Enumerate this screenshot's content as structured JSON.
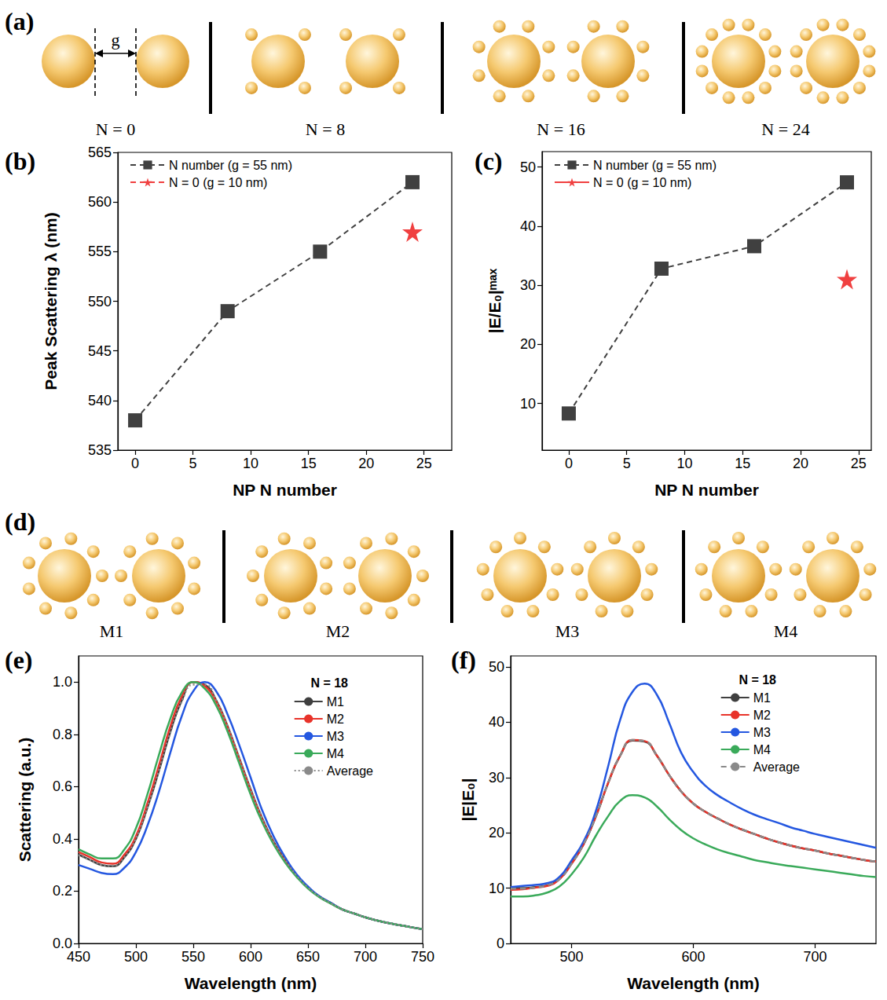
{
  "schematic_a": {
    "panel_label": "(a)",
    "gap_label": "g",
    "configs": [
      {
        "label": "N = 0",
        "N": 0
      },
      {
        "label": "N = 8",
        "N": 8
      },
      {
        "label": "N = 16",
        "N": 16
      },
      {
        "label": "N = 24",
        "N": 24
      }
    ]
  },
  "schematic_d": {
    "panel_label": "(d)",
    "N": 18,
    "configs": [
      {
        "label": "M1"
      },
      {
        "label": "M2"
      },
      {
        "label": "M3"
      },
      {
        "label": "M4"
      }
    ]
  },
  "chart_data": [
    {
      "type": "line",
      "panel_label": "(b)",
      "xlabel": "NP N number",
      "ylabel": "Peak Scattering λ (nm)",
      "xlim": [
        -1.5,
        27.4
      ],
      "xticks": [
        0,
        5,
        10,
        15,
        20,
        25
      ],
      "ylim": [
        535,
        565
      ],
      "yticks": [
        535,
        540,
        545,
        550,
        555,
        560,
        565
      ],
      "grid": false,
      "legend": "upper left",
      "series": [
        {
          "name": "N number (g = 55 nm)",
          "color": "#404040",
          "marker": "square",
          "line_style": "dashed",
          "x": [
            0,
            8,
            16,
            24
          ],
          "values": [
            538,
            549,
            555,
            562
          ]
        },
        {
          "name": "N = 0 (g = 10 nm)",
          "color": "#f04040",
          "marker": "star",
          "line_style": "dashed",
          "x": [
            24
          ],
          "values": [
            557
          ]
        }
      ]
    },
    {
      "type": "line",
      "panel_label": "(c)",
      "xlabel": "NP N number",
      "ylabel": "|E/E₀|ᵐᵃˣ",
      "xlim": [
        -2.3,
        26.1
      ],
      "xticks": [
        0,
        5,
        10,
        15,
        20,
        25
      ],
      "ylim": [
        2.1,
        52.6
      ],
      "yticks": [
        10,
        20,
        30,
        40,
        50
      ],
      "grid": false,
      "legend": "upper left",
      "series": [
        {
          "name": "N number (g = 55 nm)",
          "color": "#404040",
          "marker": "square",
          "line_style": "dashed",
          "x": [
            0,
            8,
            16,
            24
          ],
          "values": [
            8.3,
            32.8,
            36.6,
            47.4
          ]
        },
        {
          "name": "N = 0 (g = 10 nm)",
          "color": "#f04040",
          "marker": "star",
          "line_style": "solid",
          "x": [
            24
          ],
          "values": [
            31
          ]
        }
      ]
    },
    {
      "type": "line",
      "panel_label": "(e)",
      "xlabel": "Wavelength (nm)",
      "ylabel": "Scattering (a.u.)",
      "legend_title": "N = 18",
      "xlim": [
        450,
        750
      ],
      "xticks": [
        450,
        500,
        550,
        600,
        650,
        700,
        750
      ],
      "ylim": [
        0,
        1.1
      ],
      "yticks": [
        {
          "value": 0,
          "label": "0.0"
        },
        0.2,
        0.4,
        0.6,
        0.8,
        {
          "value": 1,
          "label": "1.0"
        }
      ],
      "grid": false,
      "legend": "upper right",
      "x": [
        450,
        460,
        470,
        480,
        490,
        500,
        510,
        520,
        530,
        540,
        550,
        560,
        570,
        580,
        590,
        600,
        610,
        620,
        630,
        640,
        650,
        660,
        670,
        680,
        690,
        700,
        710,
        720,
        730,
        740,
        750
      ],
      "series": [
        {
          "name": "M1",
          "color": "#3f3f3f",
          "line_style": "solid",
          "values": [
            0.34,
            0.32,
            0.3,
            0.295,
            0.33,
            0.4,
            0.52,
            0.66,
            0.81,
            0.93,
            1.0,
            0.99,
            0.93,
            0.83,
            0.71,
            0.59,
            0.48,
            0.39,
            0.32,
            0.26,
            0.215,
            0.18,
            0.155,
            0.13,
            0.115,
            0.1,
            0.088,
            0.078,
            0.07,
            0.062,
            0.055
          ]
        },
        {
          "name": "M2",
          "color": "#e8332a",
          "line_style": "solid",
          "values": [
            0.35,
            0.33,
            0.31,
            0.305,
            0.34,
            0.41,
            0.535,
            0.68,
            0.83,
            0.945,
            1.0,
            0.985,
            0.925,
            0.825,
            0.705,
            0.585,
            0.475,
            0.385,
            0.315,
            0.258,
            0.213,
            0.178,
            0.153,
            0.13,
            0.115,
            0.1,
            0.088,
            0.078,
            0.07,
            0.062,
            0.055
          ]
        },
        {
          "name": "M3",
          "color": "#2457e0",
          "line_style": "solid",
          "values": [
            0.3,
            0.285,
            0.27,
            0.265,
            0.29,
            0.35,
            0.45,
            0.58,
            0.73,
            0.87,
            0.965,
            1.0,
            0.965,
            0.875,
            0.76,
            0.635,
            0.51,
            0.41,
            0.33,
            0.265,
            0.218,
            0.18,
            0.155,
            0.13,
            0.115,
            0.1,
            0.088,
            0.078,
            0.07,
            0.062,
            0.055
          ]
        },
        {
          "name": "M4",
          "color": "#3aaa5a",
          "line_style": "solid",
          "values": [
            0.36,
            0.34,
            0.325,
            0.325,
            0.36,
            0.44,
            0.57,
            0.72,
            0.86,
            0.96,
            1.0,
            0.975,
            0.91,
            0.81,
            0.69,
            0.57,
            0.465,
            0.38,
            0.31,
            0.255,
            0.21,
            0.177,
            0.152,
            0.13,
            0.115,
            0.1,
            0.088,
            0.078,
            0.07,
            0.062,
            0.055
          ]
        },
        {
          "name": "Average",
          "color": "#8a8a8a",
          "line_style": "dotted",
          "values": [
            0.338,
            0.319,
            0.301,
            0.297,
            0.33,
            0.402,
            0.519,
            0.66,
            0.807,
            0.926,
            0.99,
            0.99,
            0.93,
            0.83,
            0.71,
            0.59,
            0.48,
            0.39,
            0.32,
            0.26,
            0.214,
            0.179,
            0.154,
            0.13,
            0.115,
            0.1,
            0.088,
            0.078,
            0.07,
            0.062,
            0.055
          ]
        }
      ]
    },
    {
      "type": "line",
      "panel_label": "(f)",
      "xlabel": "Wavelength (nm)",
      "ylabel": "|E|E₀|",
      "legend_title": "N = 18",
      "xlim": [
        450,
        750
      ],
      "xticks": [
        500,
        600,
        700
      ],
      "ylim": [
        0,
        52
      ],
      "yticks": [
        0,
        10,
        20,
        30,
        40,
        50
      ],
      "grid": false,
      "legend": "upper right",
      "x": [
        450,
        460,
        470,
        480,
        490,
        500,
        510,
        520,
        530,
        540,
        550,
        560,
        570,
        580,
        590,
        600,
        610,
        620,
        630,
        640,
        650,
        660,
        670,
        680,
        690,
        700,
        710,
        720,
        730,
        740,
        750
      ],
      "series": [
        {
          "name": "M1",
          "color": "#3f3f3f",
          "line_style": "solid",
          "values": [
            10,
            10,
            10.2,
            10.5,
            11.7,
            14.5,
            18,
            23,
            29,
            34,
            36.7,
            36.5,
            34,
            30.5,
            27.5,
            25.3,
            23.8,
            22.6,
            21.5,
            20.6,
            19.8,
            19,
            18.3,
            17.7,
            17.2,
            16.8,
            16.3,
            15.9,
            15.5,
            15.1,
            14.8
          ]
        },
        {
          "name": "M2",
          "color": "#e8332a",
          "line_style": "solid",
          "values": [
            9.7,
            9.8,
            10.1,
            10.4,
            11.6,
            14.4,
            18,
            23,
            29,
            34,
            36.8,
            36.6,
            34,
            30.5,
            27.5,
            25.3,
            23.8,
            22.6,
            21.5,
            20.6,
            19.8,
            19,
            18.3,
            17.7,
            17.2,
            16.8,
            16.3,
            15.9,
            15.5,
            15.1,
            14.8
          ]
        },
        {
          "name": "M3",
          "color": "#2457e0",
          "line_style": "solid",
          "values": [
            10.2,
            10.4,
            10.6,
            10.9,
            12,
            15,
            18.5,
            24,
            32,
            40.5,
            45.5,
            47,
            45,
            40,
            34.5,
            31,
            28.5,
            26.8,
            25.5,
            24.3,
            23.3,
            22.5,
            21.8,
            21,
            20.4,
            19.8,
            19.3,
            18.8,
            18.3,
            17.8,
            17.3
          ]
        },
        {
          "name": "M4",
          "color": "#3aaa5a",
          "line_style": "solid",
          "values": [
            8.5,
            8.5,
            8.7,
            9.2,
            10.3,
            12.5,
            15.5,
            19.5,
            23,
            25.8,
            26.8,
            26.4,
            24.8,
            22.5,
            20.5,
            19,
            17.9,
            17,
            16.3,
            15.7,
            15.1,
            14.7,
            14.3,
            14,
            13.7,
            13.4,
            13.1,
            12.8,
            12.5,
            12.2,
            12
          ]
        },
        {
          "name": "Average",
          "color": "#8a8a8a",
          "line_style": "dashed",
          "values": [
            9.9,
            9.9,
            10.1,
            10.5,
            11.6,
            14.4,
            18,
            23,
            29,
            34,
            36.8,
            36.6,
            34,
            30.5,
            27.5,
            25.3,
            23.8,
            22.6,
            21.5,
            20.6,
            19.8,
            19,
            18.3,
            17.7,
            17.2,
            16.8,
            16.3,
            15.9,
            15.5,
            15.1,
            14.8
          ]
        }
      ]
    }
  ]
}
